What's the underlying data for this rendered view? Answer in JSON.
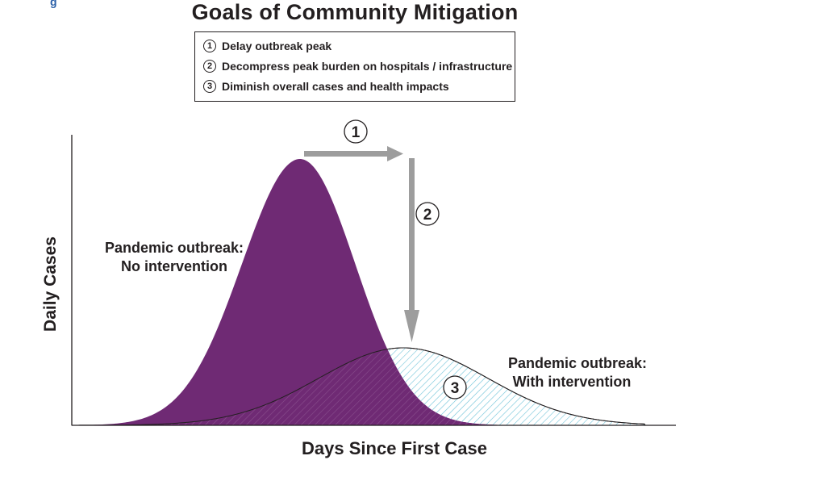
{
  "header": {
    "corner_mark": "g",
    "title": "Goals of Community Mitigation"
  },
  "legend": {
    "items": [
      {
        "number": "1",
        "text": "Delay outbreak peak"
      },
      {
        "number": "2",
        "text": "Decompress peak burden on hospitals / infrastructure"
      },
      {
        "number": "3",
        "text": "Diminish overall cases and health impacts"
      }
    ]
  },
  "diagram": {
    "y_axis_label": "Daily Cases",
    "x_axis_label": "Days Since First Case",
    "curve_no_intervention": {
      "line1": "Pandemic outbreak:",
      "line2": "No intervention",
      "color": "#6f2a74"
    },
    "curve_with_intervention": {
      "line1": "Pandemic outbreak:",
      "line2": "With intervention",
      "hatch_color": "#6fc3d8"
    },
    "markers": [
      "1",
      "2",
      "3"
    ],
    "arrow_color": "#9d9d9d"
  }
}
